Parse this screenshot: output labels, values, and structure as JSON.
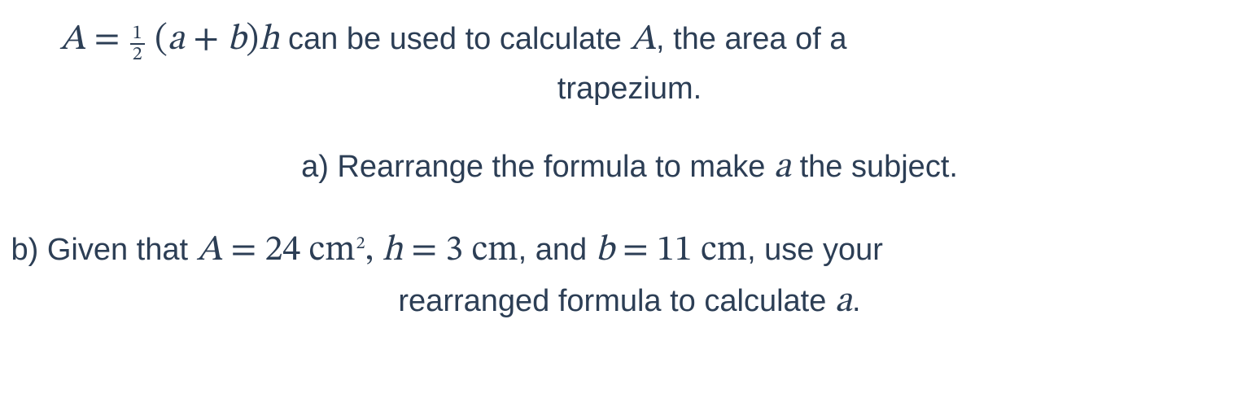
{
  "colors": {
    "text": "#2c3e55",
    "background": "#ffffff",
    "fraction_rule": "#2c3e55"
  },
  "typography": {
    "body_fontsize_pt": 29,
    "math_fontsize_pt": 33,
    "frac_fontsize_pt": 18,
    "sup_fontsize_pt": 17,
    "body_family": "Segoe UI / Helvetica Neue / Arial",
    "math_family": "Cambria Math / STIX Two Math / Times New Roman"
  },
  "formula": {
    "lhs_var": "A",
    "eq": " = ",
    "frac_num": "1",
    "frac_den": "2",
    "open": "(",
    "var_a": "a",
    "plus": " + ",
    "var_b": "b",
    "close": ")",
    "var_h": "h"
  },
  "intro": {
    "mid1": " can be used to calculate ",
    "var_A2": "A",
    "mid2": ", the area of a",
    "line2": "trapezium."
  },
  "qa": {
    "prefix": "a) Rearrange the formula to make ",
    "var_a": "a",
    "suffix": " the subject."
  },
  "qb": {
    "prefix": "b) Given that ",
    "A_var": "A",
    "eq1": " = ",
    "A_val": "24",
    "A_unit_base": " cm",
    "A_unit_exp": "2",
    "sep1": ", ",
    "h_var": "h",
    "eq2": " = ",
    "h_val": "3",
    "h_unit": " cm",
    "sep2": ", and ",
    "b_var": "b",
    "eq3": " = ",
    "b_val": "11",
    "b_unit": " cm",
    "tail1": ", use your",
    "line2a": "rearranged formula to calculate ",
    "var_a": "a",
    "line2b": "."
  }
}
